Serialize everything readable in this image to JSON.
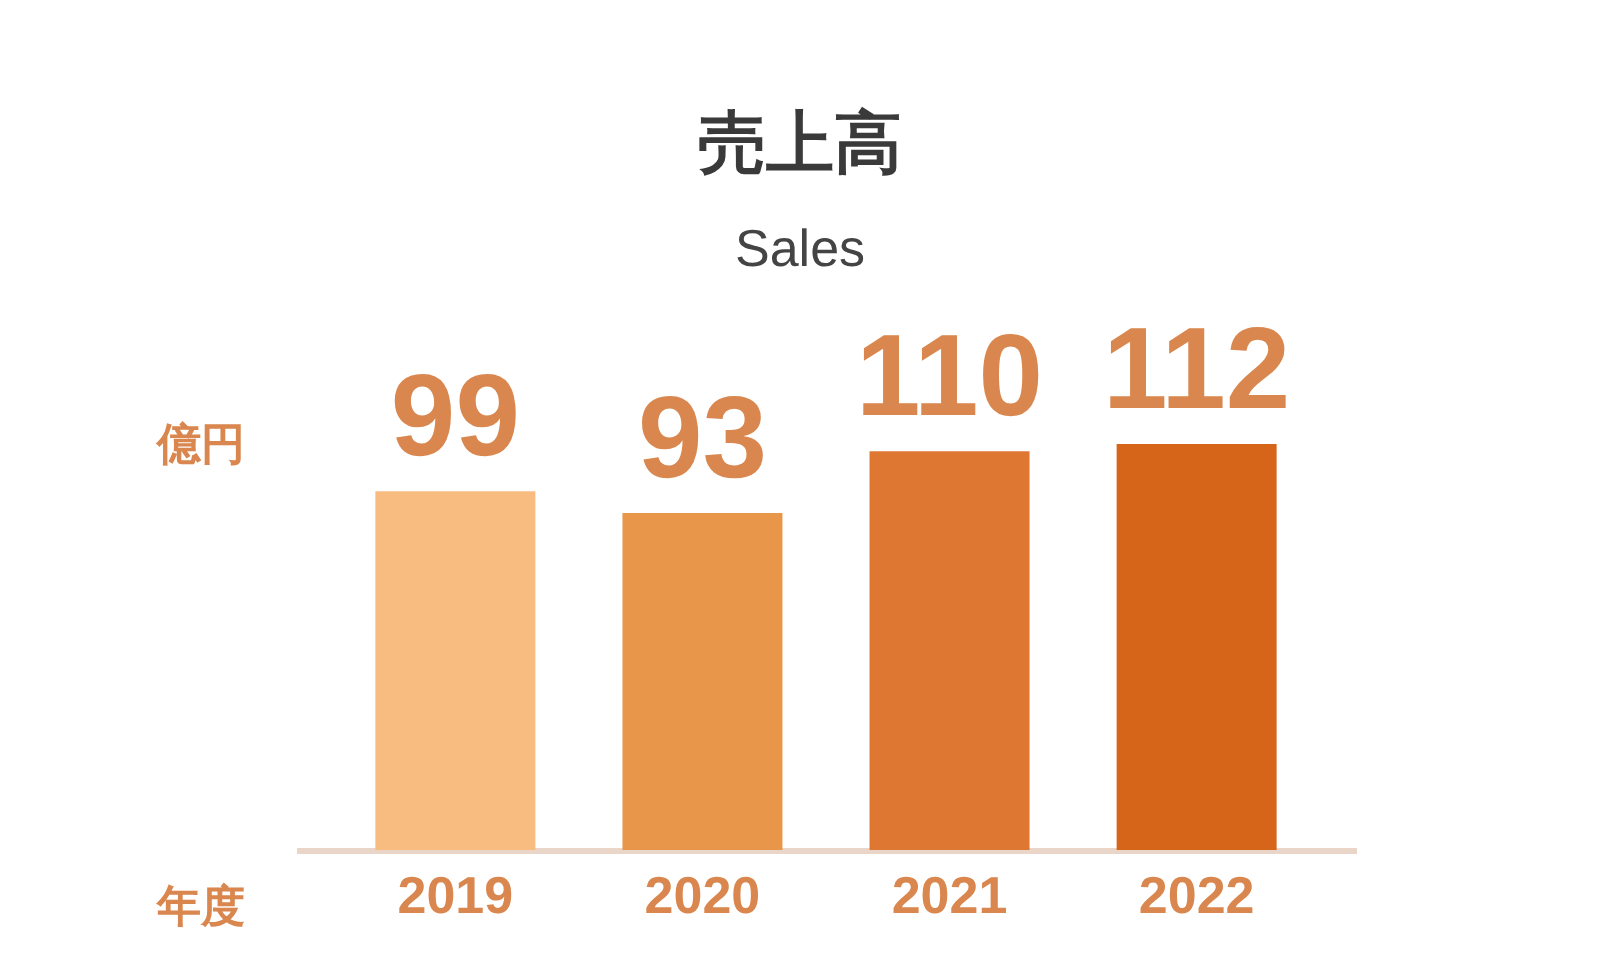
{
  "chart_data": {
    "type": "bar",
    "title": "売上高",
    "subtitle": "Sales",
    "xlabel": "年度",
    "ylabel": "億円",
    "categories": [
      "2019",
      "2020",
      "2021",
      "2022"
    ],
    "values": [
      99,
      93,
      110,
      112
    ],
    "colors": [
      "#f8bb80",
      "#e8964a",
      "#dd7731",
      "#d66519"
    ],
    "data_labels": true,
    "grid": false
  }
}
